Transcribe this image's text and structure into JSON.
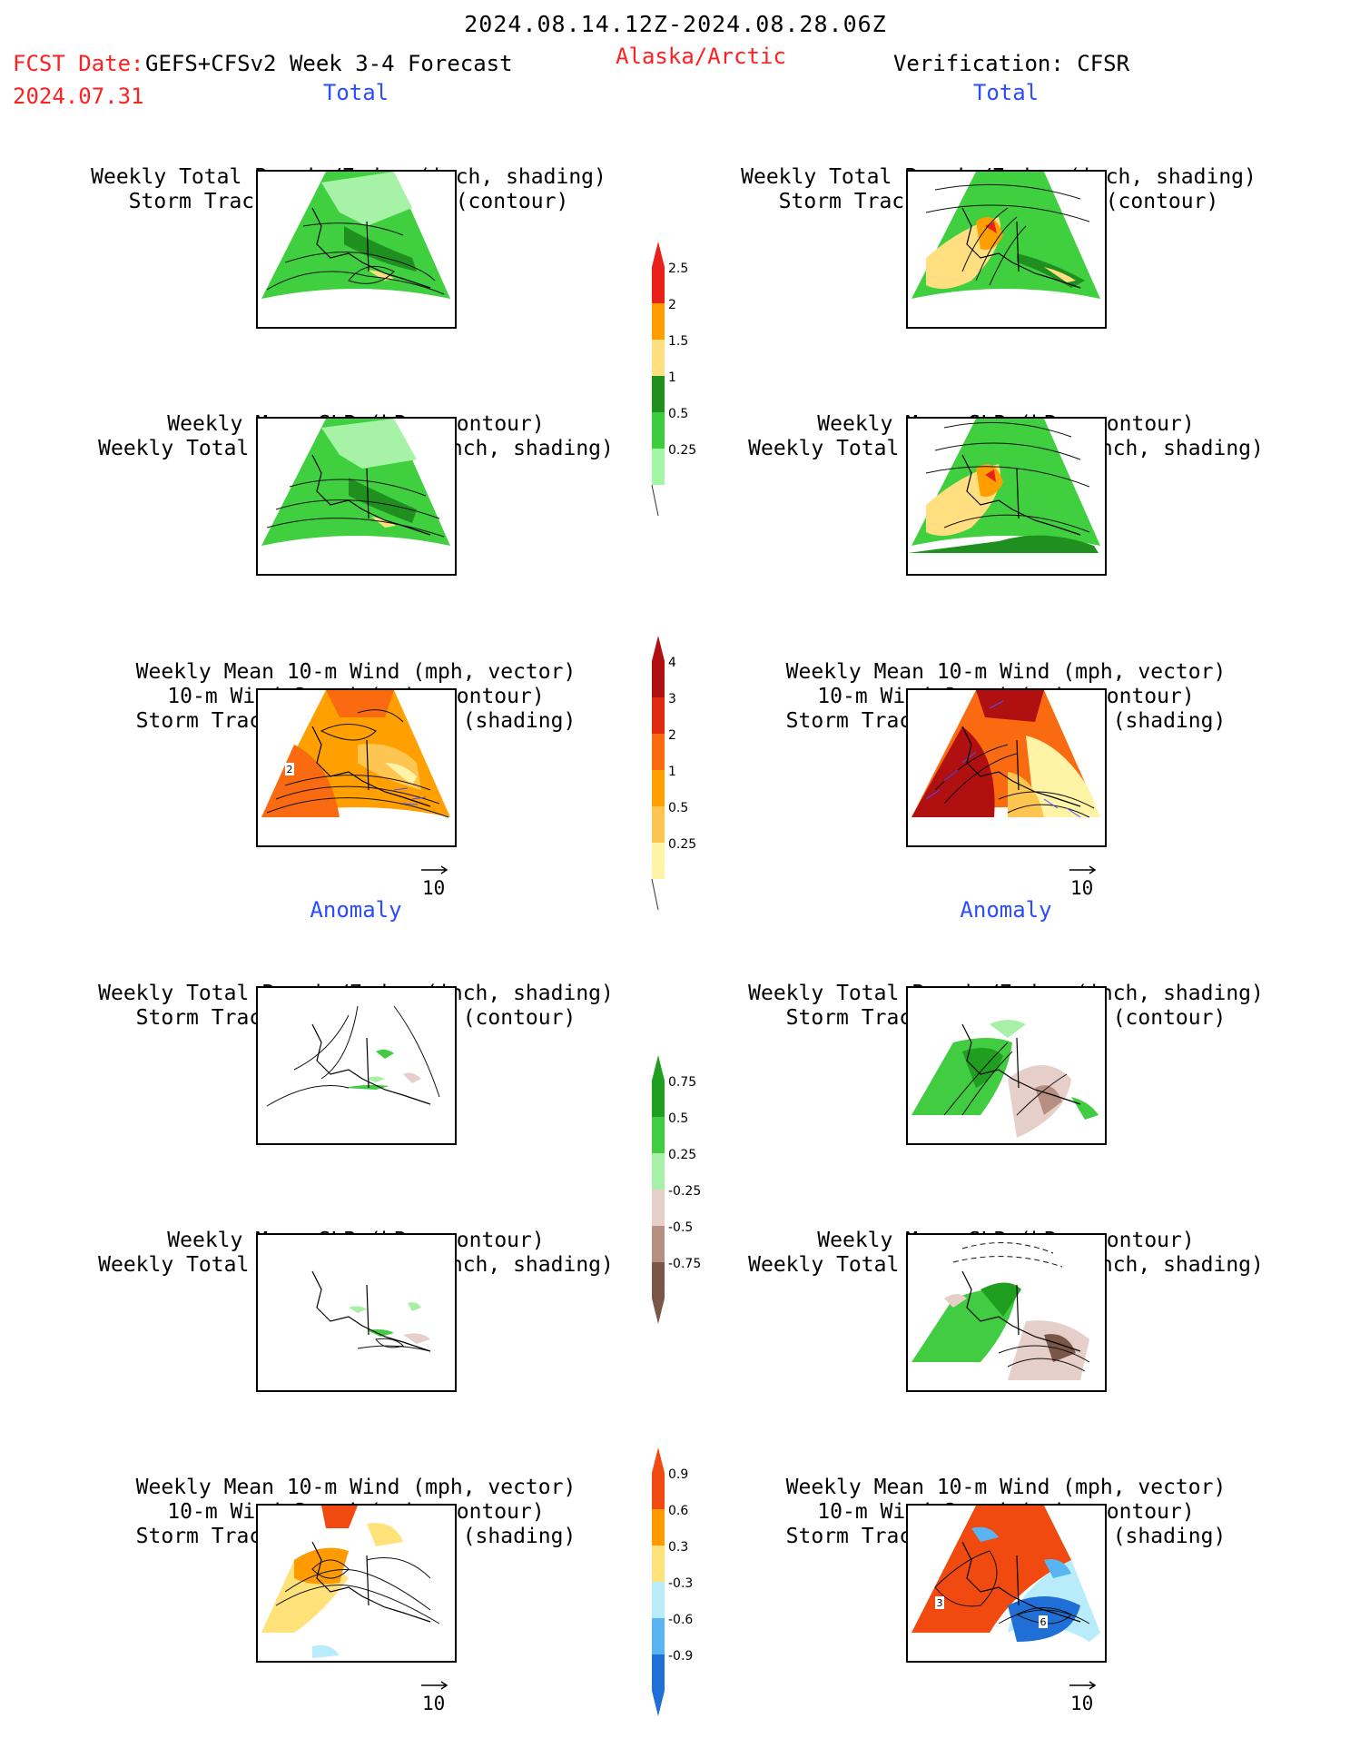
{
  "header": {
    "period": "2024.08.14.12Z-2024.08.28.06Z",
    "fcst_prefix": "FCST Date:",
    "fcst_model": "GEFS+CFSv2 Week 3-4 Forecast",
    "fcst_date": "2024.07.31",
    "region": "Alaska/Arctic",
    "verification": "Verification: CFSR"
  },
  "sections": {
    "total": "Total",
    "anomaly": "Anomaly"
  },
  "panel_titles": {
    "precip_storm": [
      "Weekly Total Precip/7-day (inch, shading)",
      "Storm Track Density/7-day (contour)"
    ],
    "slp_precip": [
      "Weekly Mean SLP (hPa, contour)",
      "Weekly Total Precip/7-day (inch, shading)"
    ],
    "wind_storm": [
      "Weekly Mean 10-m Wind (mph, vector)",
      "10-m Wind Speed (mph, contour)",
      "Storm Track Density/7-day (shading)"
    ]
  },
  "vector_reference": "10",
  "colorbars": {
    "precip_total": {
      "labels": [
        "2.5",
        "2",
        "1.5",
        "1",
        "0.5",
        "0.25"
      ],
      "colors": [
        "#e8221a",
        "#ff9e00",
        "#ffdf7f",
        "#1f8f1f",
        "#3dcc3d",
        "#a4f5a4"
      ]
    },
    "storm_total": {
      "labels": [
        "4",
        "3",
        "2",
        "1",
        "0.5",
        "0.25"
      ],
      "colors": [
        "#b01010",
        "#e02a10",
        "#fa6a10",
        "#ffa000",
        "#fec650",
        "#fff3a6"
      ]
    },
    "precip_anom": {
      "labels": [
        "0.75",
        "0.5",
        "0.25",
        "-0.25",
        "-0.5",
        "-0.75"
      ],
      "colors": [
        "#1f9e1f",
        "#41cc41",
        "#a8f0a8",
        "#e6cfc8",
        "#b58f82",
        "#7a5648"
      ]
    },
    "storm_anom": {
      "labels": [
        "0.9",
        "0.6",
        "0.3",
        "-0.3",
        "-0.6",
        "-0.9"
      ],
      "colors": [
        "#f04a10",
        "#ff9a00",
        "#ffe27a",
        "#b8ecfb",
        "#5ab4f0",
        "#1f6fd6"
      ]
    }
  },
  "contour_labels": {
    "total_wind_gefs": "2",
    "anom_wind_cfsr_left": "3",
    "anom_wind_cfsr_right": "6"
  }
}
